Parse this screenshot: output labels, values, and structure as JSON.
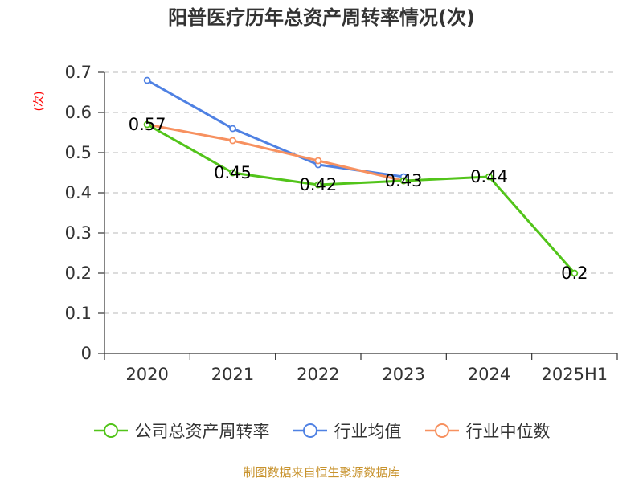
{
  "title": "阳普医疗历年总资产周转率情况(次)",
  "source": "制图数据来自恒生聚源数据库",
  "chart_data": {
    "type": "line",
    "title": "阳普医疗历年总资产周转率情况(次)",
    "ylabel": "(次)",
    "xlabel": "",
    "categories": [
      "2020",
      "2021",
      "2022",
      "2023",
      "2024",
      "2025H1"
    ],
    "ylim": [
      0,
      0.7
    ],
    "yticks": [
      "0",
      "0.1",
      "0.2",
      "0.3",
      "0.4",
      "0.5",
      "0.6",
      "0.7"
    ],
    "grid": true,
    "legend_position": "bottom",
    "series": [
      {
        "name": "公司总资产周转率",
        "color": "#52c41a",
        "values": [
          0.57,
          0.45,
          0.42,
          0.43,
          0.44,
          0.2
        ],
        "labels": [
          "0.57",
          "0.45",
          "0.42",
          "0.43",
          "0.44",
          "0.2"
        ]
      },
      {
        "name": "行业均值",
        "color": "#4f81e3",
        "values": [
          0.68,
          0.56,
          0.47,
          0.44,
          null,
          null
        ]
      },
      {
        "name": "行业中位数",
        "color": "#f79160",
        "values": [
          0.57,
          0.53,
          0.48,
          0.43,
          null,
          null
        ]
      }
    ]
  }
}
